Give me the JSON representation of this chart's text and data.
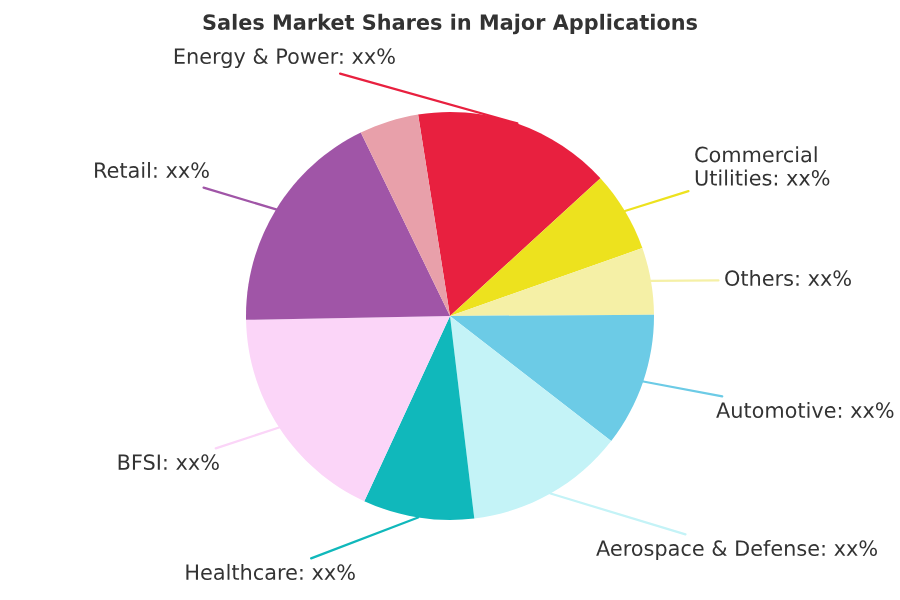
{
  "chart_data": {
    "type": "pie",
    "title": "Sales Market Shares in Major Applications",
    "categories": [
      "Energy & Power",
      "Commercial Utilities",
      "Others",
      "Automotive",
      "Aerospace & Defense",
      "Healthcare",
      "BFSI",
      "Retail",
      null
    ],
    "values": [
      15.7,
      6.4,
      5.3,
      10.6,
      12.6,
      8.8,
      17.8,
      18.1,
      4.7
    ],
    "colors": [
      "#e8203f",
      "#ede21e",
      "#f5f0a6",
      "#6ccbe6",
      "#c4f3f7",
      "#10b8bb",
      "#fbd5f8",
      "#a055a7",
      "#e8a0aa"
    ],
    "value_labels": [
      "xx%",
      "xx%",
      "xx%",
      "xx%",
      "xx%",
      "xx%",
      "xx%",
      "xx%",
      null
    ]
  }
}
